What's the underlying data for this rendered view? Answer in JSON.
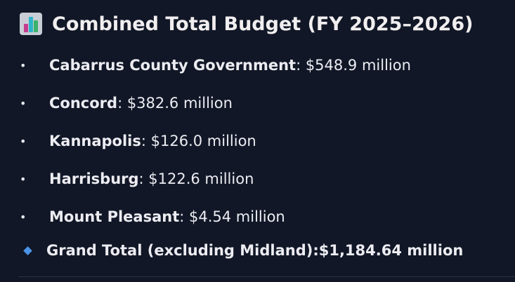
{
  "header": {
    "icon": "bar-chart-icon",
    "title": "Combined Total Budget (FY 2025–2026)"
  },
  "bullet_symbol": "•",
  "items": [
    {
      "label": "Cabarrus County Government",
      "value": ": $548.9 million"
    },
    {
      "label": "Concord",
      "value": ": $382.6 million"
    },
    {
      "label": "Kannapolis",
      "value": ": $126.0 million"
    },
    {
      "label": "Harrisburg",
      "value": ": $122.6 million"
    },
    {
      "label": "Mount Pleasant",
      "value": ": $4.54 million"
    }
  ],
  "total": {
    "icon": "blue-diamond-icon",
    "label": "Grand Total (excluding Midland): ",
    "value": "$1,184.64 million"
  },
  "colors": {
    "background": "#111726",
    "text": "#ececf2",
    "diamond": "#4a93e6"
  }
}
